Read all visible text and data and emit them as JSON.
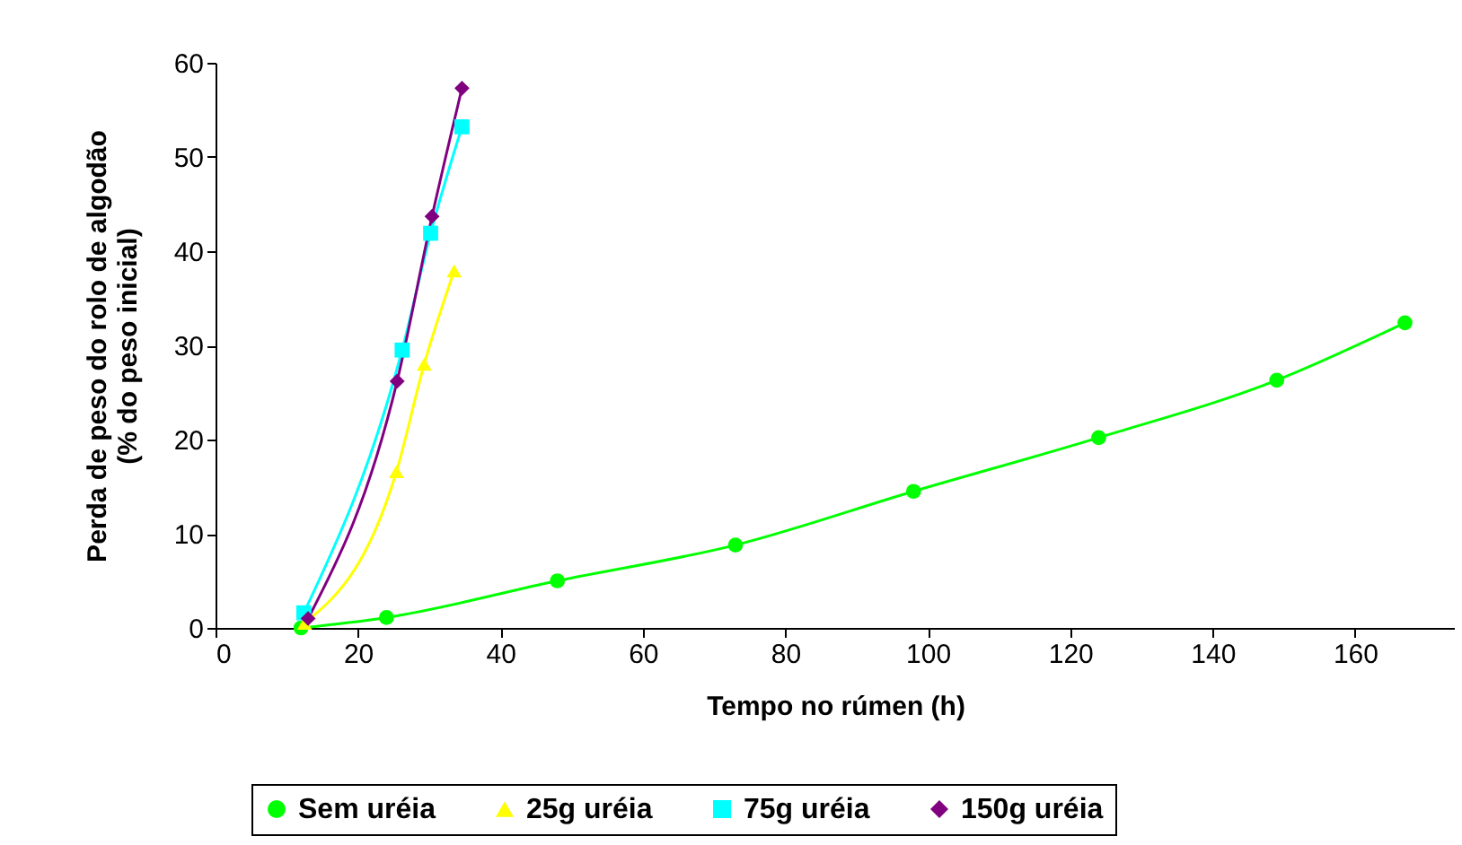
{
  "chart_data": {
    "type": "line",
    "xlabel": "Tempo no rúmen (h)",
    "ylabel": "Perda de peso do rolo de algodão\n(% do peso inicial)",
    "series": [
      {
        "name": "Sem uréia",
        "color": "#00ff00",
        "marker": "circle",
        "x": [
          12,
          24,
          48,
          73,
          98,
          124,
          149,
          167
        ],
        "values": [
          0,
          1.1,
          5,
          8.8,
          14.5,
          20.2,
          26.3,
          32.4
        ]
      },
      {
        "name": "25g uréia",
        "color": "#ffff00",
        "marker": "triangle",
        "x": [
          12.5,
          25.4,
          29.3,
          33.5
        ],
        "values": [
          0.5,
          16.6,
          28,
          37.9
        ]
      },
      {
        "name": "75g uréia",
        "color": "#00ffff",
        "marker": "square",
        "x": [
          12.4,
          26.2,
          30.2,
          34.6
        ],
        "values": [
          1.6,
          29.5,
          41.9,
          53.2
        ]
      },
      {
        "name": "150g uréia",
        "color": "#800080",
        "marker": "diamond",
        "x": [
          13,
          25.5,
          30.4,
          34.6
        ],
        "values": [
          1,
          26.2,
          43.7,
          57.3
        ]
      }
    ],
    "xlim": [
      0,
      174
    ],
    "xticks": [
      0,
      20,
      40,
      60,
      80,
      100,
      120,
      140,
      160
    ],
    "ylim": [
      0,
      60
    ],
    "yticks": [
      0,
      10,
      20,
      30,
      40,
      50,
      60
    ],
    "grid": false,
    "legend": "bottom"
  }
}
